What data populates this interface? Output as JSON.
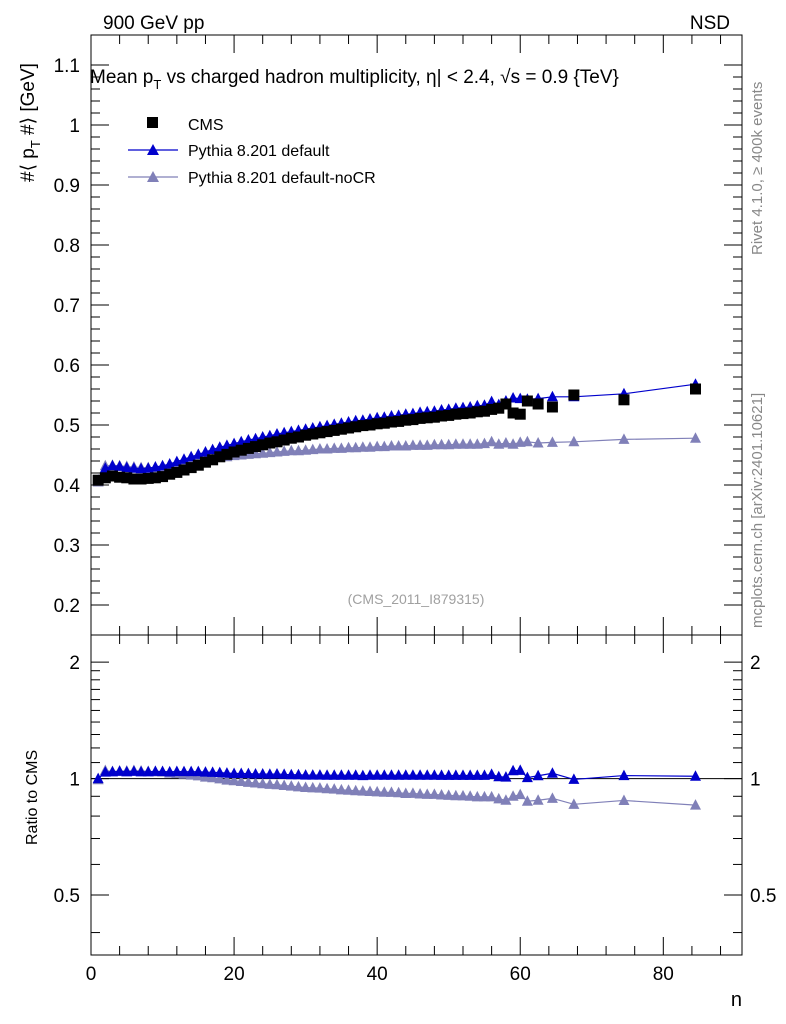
{
  "header": {
    "left": "900 GeV pp",
    "right": "NSD"
  },
  "side_labels": {
    "rivet": "Rivet 4.1.0, ≥ 400k events",
    "mcplots": "mcplots.cern.ch [arXiv:2401.10621]"
  },
  "chart_data": [
    {
      "type": "scatter",
      "title": "Mean p_T vs charged hadron multiplicity, |η| < 2.4, √s = 0.9 {TeV}",
      "title_parts": {
        "prefix": "Mean p",
        "sub": "T",
        "mid": " vs charged hadron multiplicity, ",
        "eta": "η",
        "rest": "| < 2.4, √s = 0.9 {TeV}"
      },
      "xlabel": "n",
      "ylabel": "#⟨ p_T #⟩ [GeV]",
      "ylabel_parts": {
        "a": "#⟨ p",
        "sub": "T",
        "b": " #⟩ [GeV]"
      },
      "watermark": "(CMS_2011_I879315)",
      "xlim": [
        0,
        91
      ],
      "ylim": [
        0.15,
        1.15
      ],
      "yticks": [
        "0.2",
        "0.3",
        "0.4",
        "0.5",
        "0.6",
        "0.7",
        "0.8",
        "0.9",
        "1",
        "1.1"
      ],
      "legend": {
        "position": "top-left",
        "entries": [
          "CMS",
          "Pythia 8.201 default",
          "Pythia 8.201 default-noCR"
        ]
      },
      "series": [
        {
          "name": "CMS",
          "color": "#000000",
          "marker": "square",
          "x": [
            1,
            2,
            3,
            4,
            5,
            6,
            7,
            8,
            9,
            10,
            11,
            12,
            13,
            14,
            15,
            16,
            17,
            18,
            19,
            20,
            21,
            22,
            23,
            24,
            25,
            26,
            27,
            28,
            29,
            30,
            31,
            32,
            33,
            34,
            35,
            36,
            37,
            38,
            39,
            40,
            41,
            42,
            43,
            44,
            45,
            46,
            47,
            48,
            49,
            50,
            51,
            52,
            53,
            54,
            55,
            56,
            57,
            58,
            59,
            60,
            61,
            62.5,
            64.5,
            67.5,
            74.5,
            84.5
          ],
          "y": [
            0.408,
            0.412,
            0.415,
            0.413,
            0.412,
            0.41,
            0.41,
            0.411,
            0.412,
            0.414,
            0.418,
            0.421,
            0.425,
            0.429,
            0.433,
            0.438,
            0.442,
            0.447,
            0.451,
            0.455,
            0.458,
            0.461,
            0.464,
            0.467,
            0.47,
            0.472,
            0.475,
            0.478,
            0.48,
            0.483,
            0.485,
            0.487,
            0.489,
            0.491,
            0.493,
            0.495,
            0.497,
            0.499,
            0.5,
            0.502,
            0.503,
            0.505,
            0.506,
            0.508,
            0.509,
            0.511,
            0.512,
            0.513,
            0.515,
            0.516,
            0.518,
            0.519,
            0.52,
            0.522,
            0.523,
            0.526,
            0.528,
            0.535,
            0.52,
            0.518,
            0.54,
            0.535,
            0.53,
            0.55,
            0.542,
            0.56
          ]
        },
        {
          "name": "Pythia 8.201 default",
          "color": "#0000cc",
          "marker": "triangle",
          "x": [
            1,
            2,
            3,
            4,
            5,
            6,
            7,
            8,
            9,
            10,
            11,
            12,
            13,
            14,
            15,
            16,
            17,
            18,
            19,
            20,
            21,
            22,
            23,
            24,
            25,
            26,
            27,
            28,
            29,
            30,
            31,
            32,
            33,
            34,
            35,
            36,
            37,
            38,
            39,
            40,
            41,
            42,
            43,
            44,
            45,
            46,
            47,
            48,
            49,
            50,
            51,
            52,
            53,
            54,
            55,
            56,
            57,
            58,
            59,
            60,
            61,
            62.5,
            64.5,
            67.5,
            74.5,
            84.5
          ],
          "y": [
            0.408,
            0.428,
            0.432,
            0.431,
            0.429,
            0.428,
            0.427,
            0.428,
            0.43,
            0.432,
            0.435,
            0.439,
            0.443,
            0.447,
            0.451,
            0.455,
            0.459,
            0.463,
            0.466,
            0.469,
            0.472,
            0.475,
            0.477,
            0.48,
            0.482,
            0.485,
            0.487,
            0.489,
            0.491,
            0.493,
            0.495,
            0.497,
            0.499,
            0.501,
            0.503,
            0.505,
            0.507,
            0.508,
            0.51,
            0.512,
            0.513,
            0.515,
            0.516,
            0.518,
            0.519,
            0.521,
            0.522,
            0.523,
            0.525,
            0.526,
            0.528,
            0.529,
            0.53,
            0.532,
            0.533,
            0.539,
            0.534,
            0.54,
            0.545,
            0.544,
            0.543,
            0.544,
            0.547,
            0.547,
            0.552,
            0.568
          ]
        },
        {
          "name": "Pythia 8.201 default-noCR",
          "color": "#8080b8",
          "marker": "triangle",
          "x": [
            1,
            2,
            3,
            4,
            5,
            6,
            7,
            8,
            9,
            10,
            11,
            12,
            13,
            14,
            15,
            16,
            17,
            18,
            19,
            20,
            21,
            22,
            23,
            24,
            25,
            26,
            27,
            28,
            29,
            30,
            31,
            32,
            33,
            34,
            35,
            36,
            37,
            38,
            39,
            40,
            41,
            42,
            43,
            44,
            45,
            46,
            47,
            48,
            49,
            50,
            51,
            52,
            53,
            54,
            55,
            56,
            57,
            58,
            59,
            60,
            61,
            62.5,
            64.5,
            67.5,
            74.5,
            84.5
          ],
          "y": [
            0.405,
            0.432,
            0.433,
            0.432,
            0.431,
            0.43,
            0.429,
            0.429,
            0.429,
            0.43,
            0.432,
            0.434,
            0.436,
            0.438,
            0.44,
            0.442,
            0.444,
            0.446,
            0.447,
            0.449,
            0.45,
            0.451,
            0.452,
            0.453,
            0.454,
            0.455,
            0.456,
            0.457,
            0.457,
            0.458,
            0.459,
            0.46,
            0.46,
            0.461,
            0.461,
            0.462,
            0.462,
            0.463,
            0.463,
            0.464,
            0.464,
            0.465,
            0.465,
            0.465,
            0.466,
            0.466,
            0.466,
            0.467,
            0.467,
            0.467,
            0.468,
            0.468,
            0.468,
            0.468,
            0.469,
            0.472,
            0.468,
            0.47,
            0.468,
            0.471,
            0.472,
            0.47,
            0.471,
            0.472,
            0.476,
            0.478
          ]
        }
      ]
    },
    {
      "type": "line",
      "ylabel": "Ratio to CMS",
      "xlabel": "n",
      "xlim": [
        0,
        91
      ],
      "ylim": [
        0.35,
        2.35
      ],
      "yscale": "log",
      "yticks": [
        "0.5",
        "1",
        "2"
      ],
      "xticks": [
        "0",
        "20",
        "40",
        "60",
        "80"
      ],
      "series": [
        {
          "name": "Pythia 8.201 default",
          "color": "#0000cc",
          "x": [
            1,
            2,
            3,
            4,
            5,
            6,
            7,
            8,
            9,
            10,
            11,
            12,
            13,
            14,
            15,
            16,
            17,
            18,
            19,
            20,
            21,
            22,
            23,
            24,
            25,
            26,
            27,
            28,
            29,
            30,
            31,
            32,
            33,
            34,
            35,
            36,
            37,
            38,
            39,
            40,
            41,
            42,
            43,
            44,
            45,
            46,
            47,
            48,
            49,
            50,
            51,
            52,
            53,
            54,
            55,
            56,
            57,
            58,
            59,
            60,
            61,
            62.5,
            64.5,
            67.5,
            74.5,
            84.5
          ],
          "y": [
            1.0,
            1.039,
            1.041,
            1.044,
            1.041,
            1.044,
            1.041,
            1.041,
            1.044,
            1.043,
            1.041,
            1.043,
            1.042,
            1.042,
            1.042,
            1.039,
            1.038,
            1.036,
            1.033,
            1.031,
            1.031,
            1.03,
            1.028,
            1.028,
            1.026,
            1.028,
            1.025,
            1.023,
            1.023,
            1.021,
            1.021,
            1.021,
            1.02,
            1.02,
            1.02,
            1.02,
            1.02,
            1.018,
            1.02,
            1.02,
            1.02,
            1.02,
            1.02,
            1.02,
            1.02,
            1.02,
            1.02,
            1.02,
            1.019,
            1.019,
            1.019,
            1.019,
            1.019,
            1.019,
            1.019,
            1.025,
            1.011,
            1.009,
            1.048,
            1.05,
            1.006,
            1.017,
            1.032,
            0.995,
            1.018,
            1.014
          ]
        },
        {
          "name": "Pythia 8.201 default-noCR",
          "color": "#8080b8",
          "x": [
            1,
            2,
            3,
            4,
            5,
            6,
            7,
            8,
            9,
            10,
            11,
            12,
            13,
            14,
            15,
            16,
            17,
            18,
            19,
            20,
            21,
            22,
            23,
            24,
            25,
            26,
            27,
            28,
            29,
            30,
            31,
            32,
            33,
            34,
            35,
            36,
            37,
            38,
            39,
            40,
            41,
            42,
            43,
            44,
            45,
            46,
            47,
            48,
            49,
            50,
            51,
            52,
            53,
            54,
            55,
            56,
            57,
            58,
            59,
            60,
            61,
            62.5,
            64.5,
            67.5,
            74.5,
            84.5
          ],
          "y": [
            0.993,
            1.049,
            1.043,
            1.046,
            1.046,
            1.049,
            1.046,
            1.044,
            1.041,
            1.039,
            1.033,
            1.031,
            1.026,
            1.021,
            1.016,
            1.009,
            1.005,
            0.998,
            0.991,
            0.987,
            0.983,
            0.978,
            0.974,
            0.97,
            0.966,
            0.964,
            0.96,
            0.956,
            0.952,
            0.948,
            0.946,
            0.945,
            0.941,
            0.939,
            0.935,
            0.933,
            0.93,
            0.928,
            0.926,
            0.924,
            0.922,
            0.921,
            0.919,
            0.915,
            0.916,
            0.912,
            0.91,
            0.91,
            0.907,
            0.905,
            0.903,
            0.902,
            0.9,
            0.897,
            0.897,
            0.897,
            0.886,
            0.879,
            0.9,
            0.909,
            0.874,
            0.879,
            0.889,
            0.858,
            0.878,
            0.854
          ]
        }
      ]
    }
  ]
}
